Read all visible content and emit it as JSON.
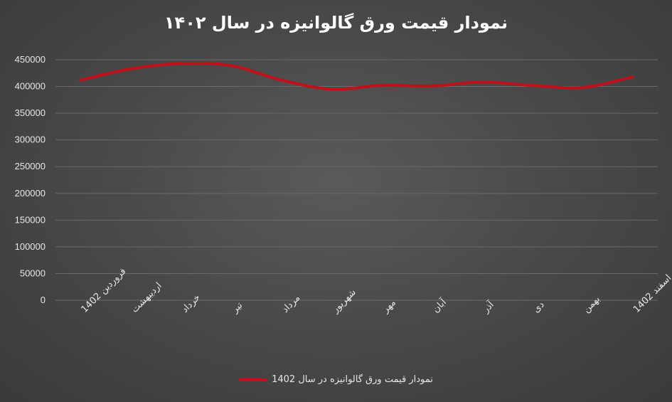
{
  "chart_data": {
    "type": "line",
    "title": "نمودار قیمت ورق گالوانیزه در سال ۱۴۰۲",
    "categories": [
      "فروردین 1402",
      "اردیبهشت",
      "خرداد",
      "تیر",
      "مرداد",
      "شهریور",
      "مهر",
      "آبان",
      "آذر",
      "دی",
      "بهمن",
      "اسفند 1402"
    ],
    "series": [
      {
        "name": "نمودار قیمت ورق گالوانیزه در سال 1402",
        "values": [
          412000,
          433000,
          443000,
          439000,
          412000,
          395000,
          402000,
          401000,
          408000,
          402000,
          398000,
          418000
        ]
      }
    ],
    "yticks": [
      "0",
      "50000",
      "100000",
      "150000",
      "200000",
      "250000",
      "300000",
      "350000",
      "400000",
      "450000"
    ],
    "ylim": [
      0,
      450000
    ],
    "xlabel": "",
    "ylabel": "",
    "grid": true,
    "legend_position": "bottom",
    "colors": {
      "line": "#c0101a",
      "grid": "#6a6a6a",
      "text": "#e6e6e6"
    }
  }
}
